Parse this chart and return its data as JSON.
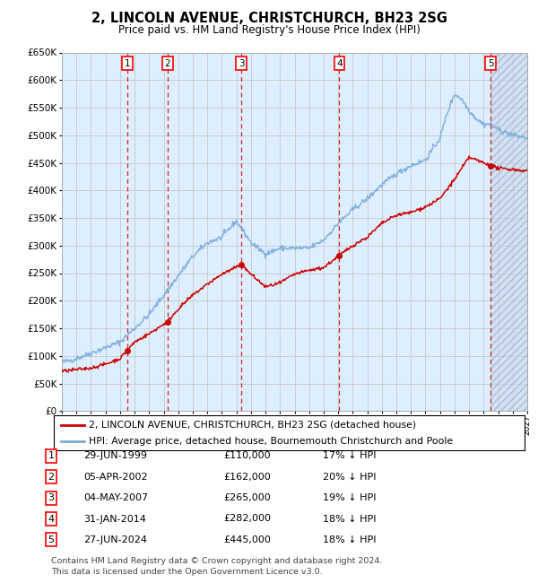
{
  "title": "2, LINCOLN AVENUE, CHRISTCHURCH, BH23 2SG",
  "subtitle": "Price paid vs. HM Land Registry's House Price Index (HPI)",
  "xlim": [
    1995,
    2027
  ],
  "ylim": [
    0,
    650000
  ],
  "yticks": [
    0,
    50000,
    100000,
    150000,
    200000,
    250000,
    300000,
    350000,
    400000,
    450000,
    500000,
    550000,
    600000,
    650000
  ],
  "ytick_labels": [
    "£0",
    "£50K",
    "£100K",
    "£150K",
    "£200K",
    "£250K",
    "£300K",
    "£350K",
    "£400K",
    "£450K",
    "£500K",
    "£550K",
    "£600K",
    "£650K"
  ],
  "sale_dates": [
    1999.49,
    2002.26,
    2007.34,
    2014.08,
    2024.49
  ],
  "sale_prices": [
    110000,
    162000,
    265000,
    282000,
    445000
  ],
  "sale_labels": [
    "1",
    "2",
    "3",
    "4",
    "5"
  ],
  "legend_red": "2, LINCOLN AVENUE, CHRISTCHURCH, BH23 2SG (detached house)",
  "legend_blue": "HPI: Average price, detached house, Bournemouth Christchurch and Poole",
  "table_rows": [
    [
      "1",
      "29-JUN-1999",
      "£110,000",
      "17% ↓ HPI"
    ],
    [
      "2",
      "05-APR-2002",
      "£162,000",
      "20% ↓ HPI"
    ],
    [
      "3",
      "04-MAY-2007",
      "£265,000",
      "19% ↓ HPI"
    ],
    [
      "4",
      "31-JAN-2014",
      "£282,000",
      "18% ↓ HPI"
    ],
    [
      "5",
      "27-JUN-2024",
      "£445,000",
      "18% ↓ HPI"
    ]
  ],
  "footnote1": "Contains HM Land Registry data © Crown copyright and database right 2024.",
  "footnote2": "This data is licensed under the Open Government Licence v3.0.",
  "red_color": "#cc0000",
  "blue_color": "#7aabdb",
  "grid_color": "#c8c8c8",
  "bg_color": "#ddeeff",
  "hpi_control_x": [
    1995,
    1996,
    1997,
    1998,
    1999,
    2000,
    2001,
    2002,
    2003,
    2004,
    2005,
    2006,
    2007,
    2008,
    2009,
    2010,
    2011,
    2012,
    2013,
    2014,
    2015,
    2016,
    2017,
    2018,
    2019,
    2020,
    2021,
    2021.5,
    2022,
    2022.5,
    2023,
    2023.5,
    2024,
    2024.5,
    2025,
    2026,
    2027
  ],
  "hpi_control_y": [
    88000,
    95000,
    105000,
    115000,
    125000,
    150000,
    175000,
    210000,
    245000,
    280000,
    305000,
    315000,
    345000,
    305000,
    285000,
    295000,
    295000,
    295000,
    310000,
    340000,
    365000,
    385000,
    410000,
    430000,
    445000,
    455000,
    495000,
    540000,
    575000,
    565000,
    545000,
    530000,
    520000,
    520000,
    510000,
    500000,
    495000
  ],
  "red_control_x": [
    1995,
    1996,
    1997,
    1998,
    1999,
    1999.49,
    2000,
    2001,
    2002.26,
    2003,
    2004,
    2005,
    2006,
    2007.34,
    2008,
    2009,
    2010,
    2011,
    2012,
    2013,
    2014.08,
    2015,
    2016,
    2017,
    2018,
    2019,
    2020,
    2021,
    2022,
    2023,
    2024.49,
    2025,
    2026,
    2027
  ],
  "red_control_y": [
    72000,
    75000,
    78000,
    85000,
    95000,
    110000,
    125000,
    140000,
    162000,
    185000,
    210000,
    230000,
    248000,
    265000,
    248000,
    225000,
    232000,
    248000,
    255000,
    260000,
    282000,
    300000,
    315000,
    340000,
    355000,
    360000,
    370000,
    385000,
    420000,
    460000,
    445000,
    440000,
    438000,
    435000
  ],
  "future_start": 2024.49
}
